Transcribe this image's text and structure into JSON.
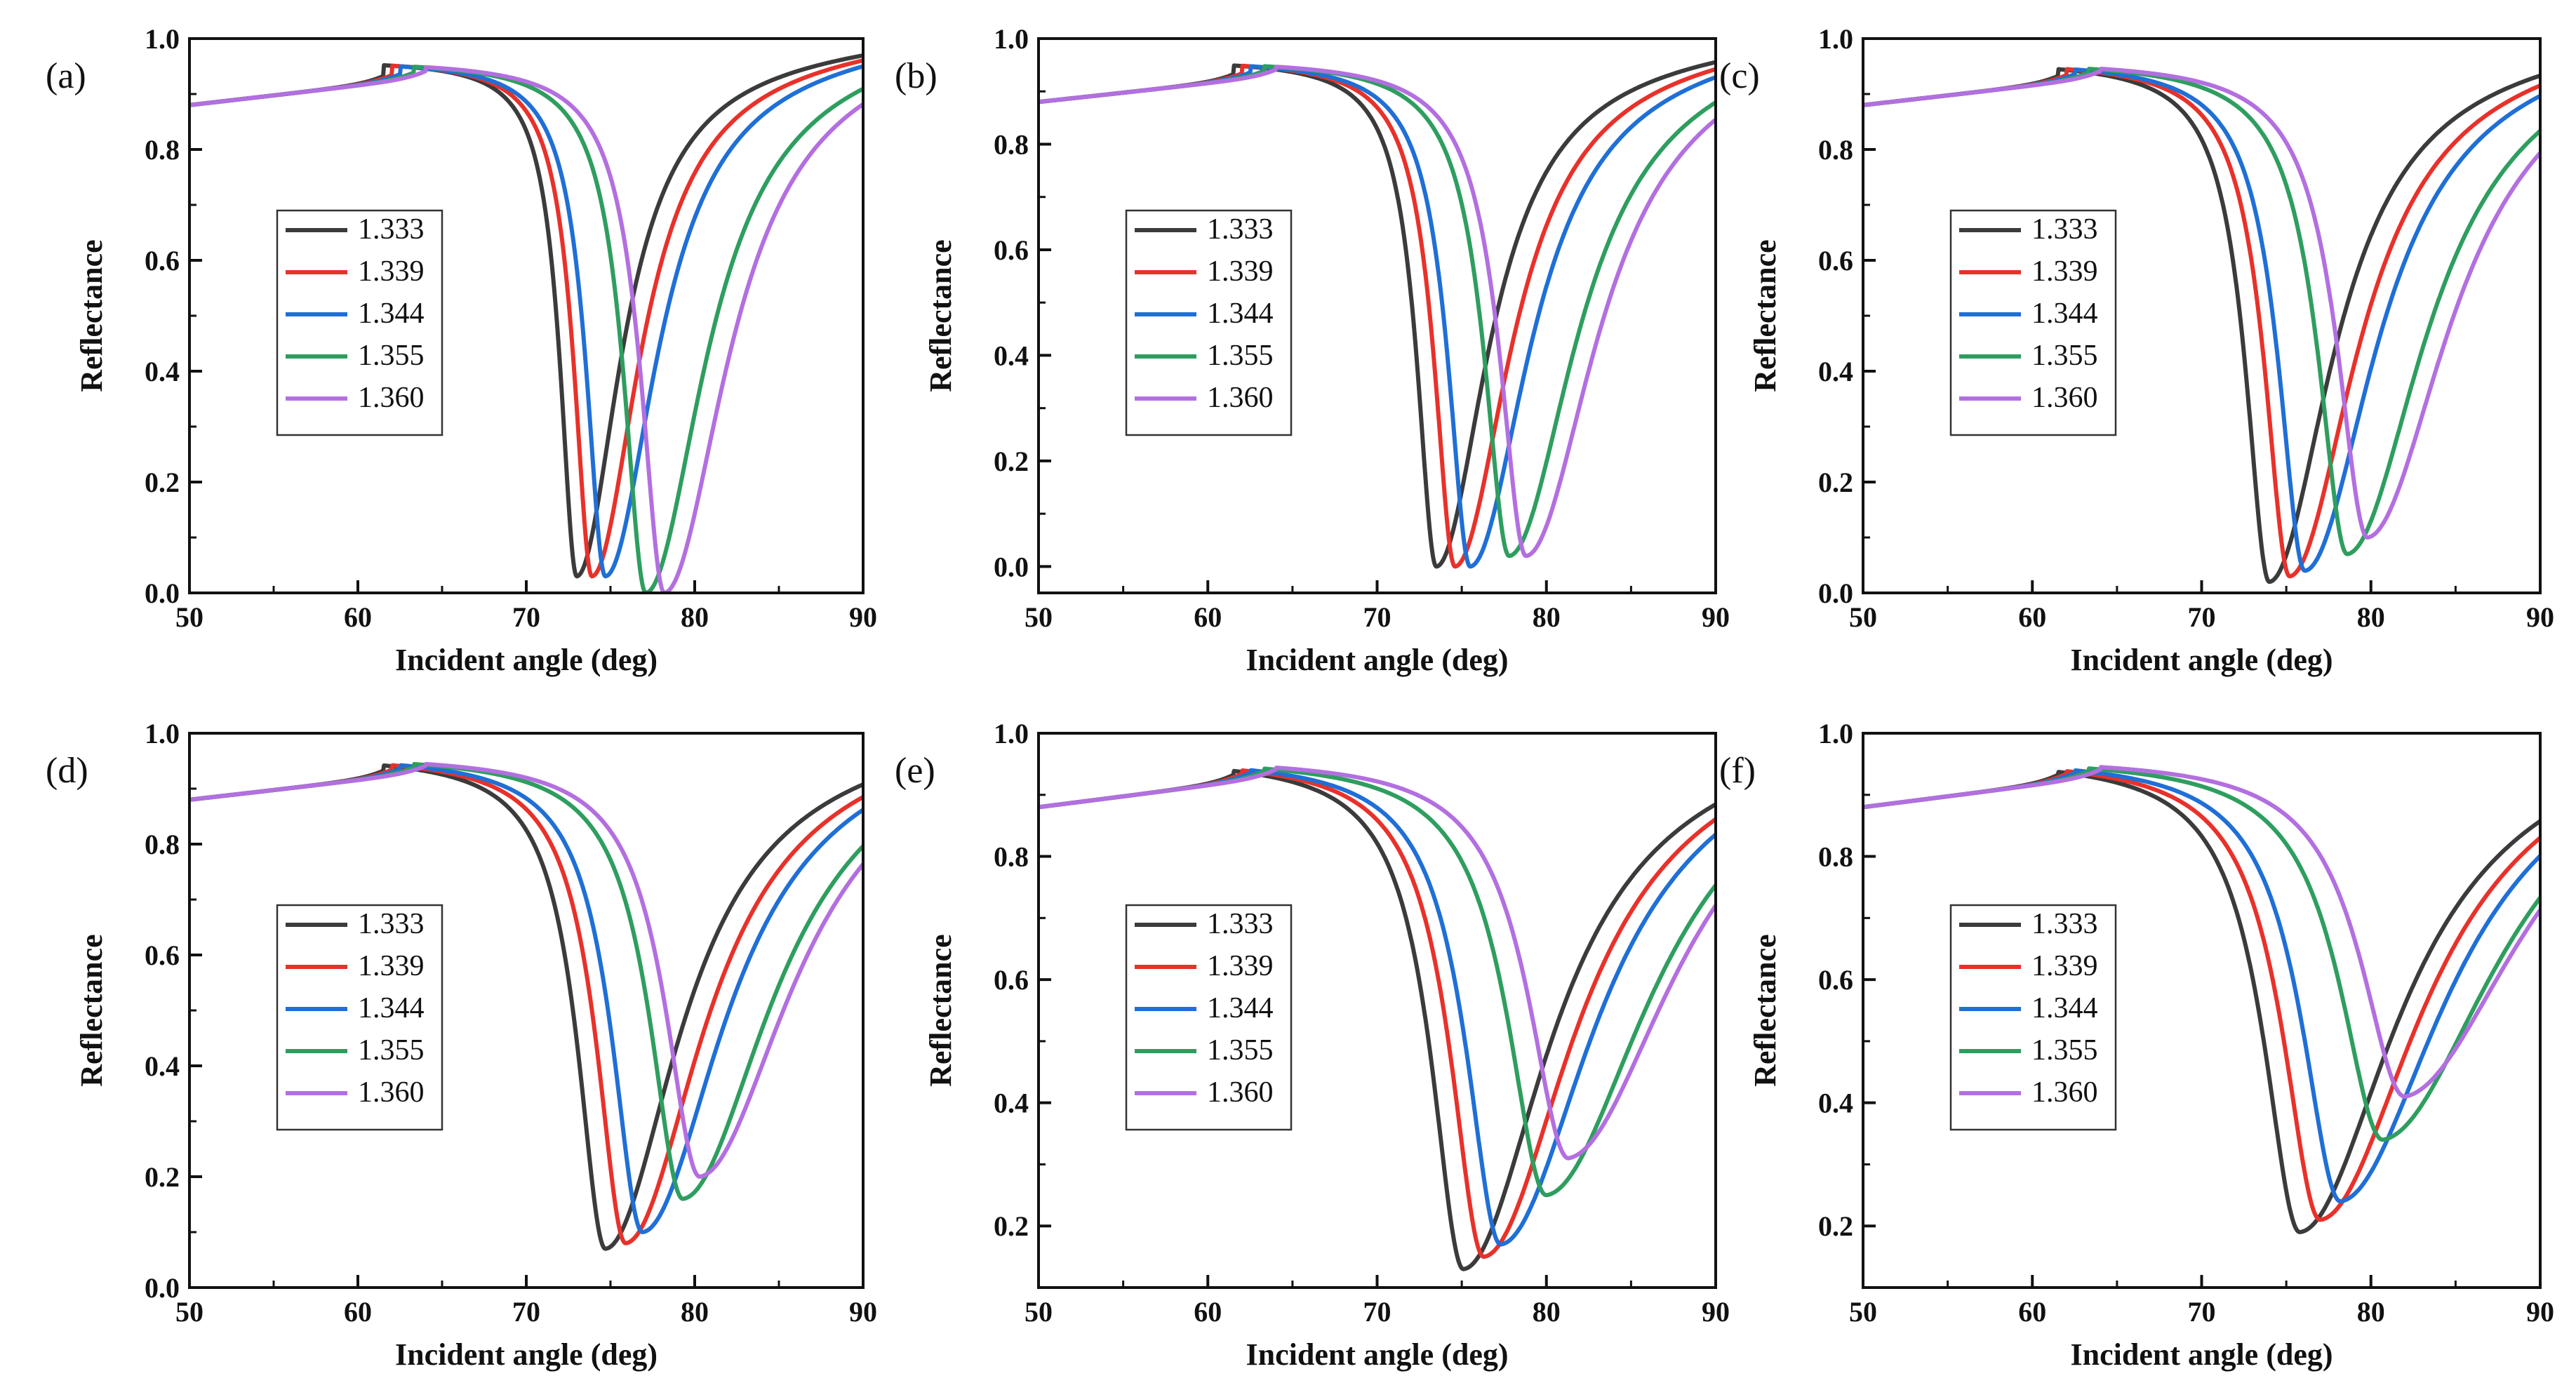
{
  "figure": {
    "series_colors": [
      "#3b3b3b",
      "#e8312a",
      "#1f6fd6",
      "#2e9e5f",
      "#b36fe0"
    ]
  },
  "chart_data": [
    {
      "type": "line",
      "panel_label": "(a)",
      "xlabel": "Incident angle (deg)",
      "ylabel": "Reflectance",
      "xlim": [
        50,
        90
      ],
      "ylim": [
        0.0,
        1.0
      ],
      "xticks": [
        "50",
        "60",
        "70",
        "80",
        "90"
      ],
      "yticks": [
        "0.0",
        "0.2",
        "0.4",
        "0.6",
        "0.8",
        "1.0"
      ],
      "legend_position": "center-left",
      "series": [
        {
          "name": "1.333",
          "critical_angle": 61.5,
          "dip_angle": 73.0,
          "min_reflectance": 0.03,
          "half_width": 1.2
        },
        {
          "name": "1.339",
          "critical_angle": 62.0,
          "dip_angle": 73.9,
          "min_reflectance": 0.03,
          "half_width": 1.3
        },
        {
          "name": "1.344",
          "critical_angle": 62.5,
          "dip_angle": 74.7,
          "min_reflectance": 0.03,
          "half_width": 1.4
        },
        {
          "name": "1.355",
          "critical_angle": 63.3,
          "dip_angle": 77.1,
          "min_reflectance": 0.0,
          "half_width": 1.6
        },
        {
          "name": "1.360",
          "critical_angle": 64.0,
          "dip_angle": 78.2,
          "min_reflectance": 0.0,
          "half_width": 1.7
        }
      ]
    },
    {
      "type": "line",
      "panel_label": "(b)",
      "xlabel": "Incident angle (deg)",
      "ylabel": "Reflectance",
      "xlim": [
        50,
        90
      ],
      "ylim": [
        -0.05,
        1.0
      ],
      "xticks": [
        "50",
        "60",
        "70",
        "80",
        "90"
      ],
      "yticks": [
        "0.0",
        "0.2",
        "0.4",
        "0.6",
        "0.8",
        "1.0"
      ],
      "legend_position": "center-left",
      "series": [
        {
          "name": "1.333",
          "critical_angle": 61.5,
          "dip_angle": 73.5,
          "min_reflectance": 0.0,
          "half_width": 1.4
        },
        {
          "name": "1.339",
          "critical_angle": 62.0,
          "dip_angle": 74.6,
          "min_reflectance": 0.0,
          "half_width": 1.5
        },
        {
          "name": "1.344",
          "critical_angle": 62.5,
          "dip_angle": 75.5,
          "min_reflectance": 0.0,
          "half_width": 1.6
        },
        {
          "name": "1.355",
          "critical_angle": 63.3,
          "dip_angle": 77.8,
          "min_reflectance": 0.02,
          "half_width": 1.8
        },
        {
          "name": "1.360",
          "critical_angle": 64.0,
          "dip_angle": 78.8,
          "min_reflectance": 0.02,
          "half_width": 1.9
        }
      ]
    },
    {
      "type": "line",
      "panel_label": "(c)",
      "xlabel": "Incident angle (deg)",
      "ylabel": "Reflectance",
      "xlim": [
        50,
        90
      ],
      "ylim": [
        0.0,
        1.0
      ],
      "xticks": [
        "50",
        "60",
        "70",
        "80",
        "90"
      ],
      "yticks": [
        "0.0",
        "0.2",
        "0.4",
        "0.6",
        "0.8",
        "1.0"
      ],
      "legend_position": "center-left",
      "series": [
        {
          "name": "1.333",
          "critical_angle": 61.5,
          "dip_angle": 74.0,
          "min_reflectance": 0.02,
          "half_width": 1.7
        },
        {
          "name": "1.339",
          "critical_angle": 62.0,
          "dip_angle": 75.2,
          "min_reflectance": 0.03,
          "half_width": 1.8
        },
        {
          "name": "1.344",
          "critical_angle": 62.5,
          "dip_angle": 76.1,
          "min_reflectance": 0.04,
          "half_width": 1.9
        },
        {
          "name": "1.355",
          "critical_angle": 63.3,
          "dip_angle": 78.6,
          "min_reflectance": 0.07,
          "half_width": 2.1
        },
        {
          "name": "1.360",
          "critical_angle": 64.0,
          "dip_angle": 79.8,
          "min_reflectance": 0.1,
          "half_width": 2.2
        }
      ]
    },
    {
      "type": "line",
      "panel_label": "(d)",
      "xlabel": "Incident angle (deg)",
      "ylabel": "Reflectance",
      "xlim": [
        50,
        90
      ],
      "ylim": [
        0.0,
        1.0
      ],
      "xticks": [
        "50",
        "60",
        "70",
        "80",
        "90"
      ],
      "yticks": [
        "0.0",
        "0.2",
        "0.4",
        "0.6",
        "0.8",
        "1.0"
      ],
      "legend_position": "center-left",
      "series": [
        {
          "name": "1.333",
          "critical_angle": 61.5,
          "dip_angle": 74.7,
          "min_reflectance": 0.07,
          "half_width": 2.0
        },
        {
          "name": "1.339",
          "critical_angle": 62.0,
          "dip_angle": 75.9,
          "min_reflectance": 0.08,
          "half_width": 2.1
        },
        {
          "name": "1.344",
          "critical_angle": 62.5,
          "dip_angle": 76.9,
          "min_reflectance": 0.1,
          "half_width": 2.2
        },
        {
          "name": "1.355",
          "critical_angle": 63.3,
          "dip_angle": 79.3,
          "min_reflectance": 0.16,
          "half_width": 2.4
        },
        {
          "name": "1.360",
          "critical_angle": 64.0,
          "dip_angle": 80.3,
          "min_reflectance": 0.2,
          "half_width": 2.5
        }
      ]
    },
    {
      "type": "line",
      "panel_label": "(e)",
      "xlabel": "Incident angle (deg)",
      "ylabel": "Reflectance",
      "xlim": [
        50,
        90
      ],
      "ylim": [
        0.1,
        1.0
      ],
      "xticks": [
        "50",
        "60",
        "70",
        "80",
        "90"
      ],
      "yticks": [
        "0.2",
        "0.4",
        "0.6",
        "0.8",
        "1.0"
      ],
      "legend_position": "center-left",
      "series": [
        {
          "name": "1.333",
          "critical_angle": 61.5,
          "dip_angle": 75.1,
          "min_reflectance": 0.13,
          "half_width": 2.3
        },
        {
          "name": "1.339",
          "critical_angle": 62.0,
          "dip_angle": 76.3,
          "min_reflectance": 0.15,
          "half_width": 2.4
        },
        {
          "name": "1.344",
          "critical_angle": 62.5,
          "dip_angle": 77.3,
          "min_reflectance": 0.17,
          "half_width": 2.5
        },
        {
          "name": "1.355",
          "critical_angle": 63.3,
          "dip_angle": 80.0,
          "min_reflectance": 0.25,
          "half_width": 2.8
        },
        {
          "name": "1.360",
          "critical_angle": 64.0,
          "dip_angle": 81.3,
          "min_reflectance": 0.31,
          "half_width": 2.9
        }
      ]
    },
    {
      "type": "line",
      "panel_label": "(f)",
      "xlabel": "Incident angle (deg)",
      "ylabel": "Reflectance",
      "xlim": [
        50,
        90
      ],
      "ylim": [
        0.1,
        1.0
      ],
      "xticks": [
        "50",
        "60",
        "70",
        "80",
        "90"
      ],
      "yticks": [
        "0.2",
        "0.4",
        "0.6",
        "0.8",
        "1.0"
      ],
      "legend_position": "center-left",
      "series": [
        {
          "name": "1.333",
          "critical_angle": 61.5,
          "dip_angle": 75.8,
          "min_reflectance": 0.19,
          "half_width": 2.6
        },
        {
          "name": "1.339",
          "critical_angle": 62.0,
          "dip_angle": 77.0,
          "min_reflectance": 0.21,
          "half_width": 2.7
        },
        {
          "name": "1.344",
          "critical_angle": 62.5,
          "dip_angle": 78.2,
          "min_reflectance": 0.24,
          "half_width": 2.8
        },
        {
          "name": "1.355",
          "critical_angle": 63.3,
          "dip_angle": 80.7,
          "min_reflectance": 0.34,
          "half_width": 3.1
        },
        {
          "name": "1.360",
          "critical_angle": 64.0,
          "dip_angle": 82.0,
          "min_reflectance": 0.41,
          "half_width": 3.2
        }
      ]
    }
  ]
}
